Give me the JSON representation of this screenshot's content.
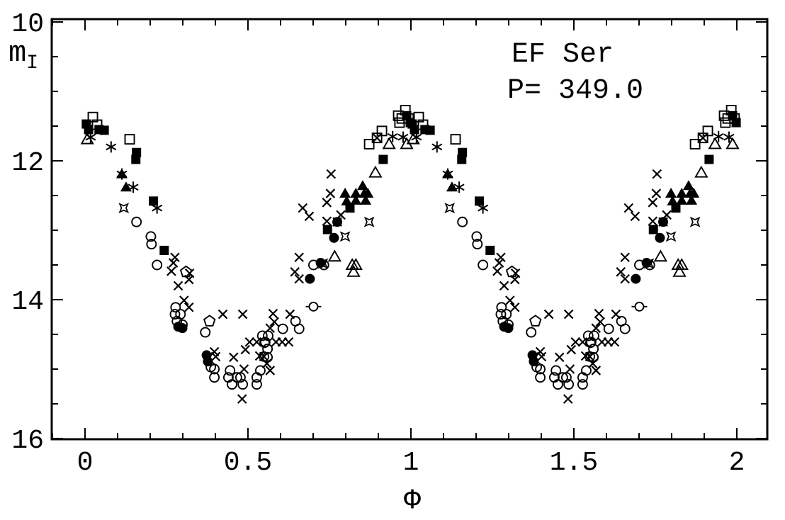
{
  "figure": {
    "background": "#ffffff",
    "ink_color": "#000000"
  },
  "chart_data": {
    "type": "scatter",
    "annotations": {
      "star_name": "EF Ser",
      "period_label": "P= 349.0"
    },
    "xlabel": "Φ",
    "ylabel": {
      "main": "m",
      "sub": "I"
    },
    "x_axis": {
      "range": [
        -0.102,
        2.093
      ],
      "major_ticks": [
        0,
        0.5,
        1,
        1.5,
        2
      ],
      "major_tick_labels": [
        "0",
        "0.5",
        "1",
        "1.5",
        "2"
      ],
      "minor_tick_step": 0.1
    },
    "y_axis": {
      "range": [
        9.96,
        16.02
      ],
      "inverted": true,
      "major_ticks": [
        10,
        12,
        14,
        16
      ],
      "major_tick_labels": [
        "10",
        "12",
        "14",
        "16"
      ],
      "minor_tick_step": 0.5
    },
    "grid": false,
    "legend": "none",
    "phase_duplication": "each observation is plotted at phase φ and φ+1",
    "series": [
      {
        "name": "open-square",
        "marker": "sq_open",
        "points": [
          [
            0.024,
            11.37
          ],
          [
            0.037,
            11.48
          ],
          [
            0.137,
            11.69
          ],
          [
            0.872,
            11.76
          ],
          [
            0.896,
            11.67
          ],
          [
            0.911,
            11.57
          ],
          [
            0.961,
            11.35
          ],
          [
            0.965,
            11.45
          ],
          [
            0.972,
            11.39
          ],
          [
            0.983,
            11.27
          ],
          [
            0.993,
            11.39
          ]
        ]
      },
      {
        "name": "filled-square",
        "marker": "sq_fill",
        "points": [
          [
            0.004,
            11.47
          ],
          [
            0.011,
            11.55
          ],
          [
            0.043,
            11.55
          ],
          [
            0.059,
            11.56
          ],
          [
            0.156,
            11.98
          ],
          [
            0.158,
            11.88
          ],
          [
            0.21,
            12.58
          ],
          [
            0.243,
            13.29
          ],
          [
            0.744,
            12.99
          ],
          [
            0.813,
            12.68
          ],
          [
            0.915,
            11.98
          ],
          [
            0.987,
            11.35
          ],
          [
            0.998,
            11.45
          ]
        ]
      },
      {
        "name": "asterisk",
        "marker": "ast",
        "points": [
          [
            0.017,
            11.66
          ],
          [
            0.08,
            11.8
          ],
          [
            0.113,
            12.19
          ],
          [
            0.148,
            12.38
          ],
          [
            0.221,
            12.68
          ],
          [
            0.944,
            11.65
          ],
          [
            0.976,
            11.66
          ]
        ]
      },
      {
        "name": "open-triangle",
        "marker": "tri_open",
        "points": [
          [
            0.007,
            11.69
          ],
          [
            0.766,
            13.38
          ],
          [
            0.82,
            13.5
          ],
          [
            0.824,
            13.6
          ],
          [
            0.831,
            13.5
          ],
          [
            0.891,
            12.17
          ],
          [
            0.933,
            11.76
          ],
          [
            0.987,
            11.76
          ]
        ]
      },
      {
        "name": "filled-triangle",
        "marker": "tri_fill",
        "points": [
          [
            0.113,
            12.19
          ],
          [
            0.126,
            12.38
          ],
          [
            0.798,
            12.47
          ],
          [
            0.803,
            12.58
          ],
          [
            0.831,
            12.47
          ],
          [
            0.831,
            12.57
          ],
          [
            0.852,
            12.36
          ],
          [
            0.857,
            12.47
          ],
          [
            0.861,
            12.57
          ],
          [
            0.868,
            12.47
          ]
        ]
      },
      {
        "name": "open-circle",
        "marker": "circ_open",
        "points": [
          [
            0.158,
            12.88
          ],
          [
            0.202,
            13.09
          ],
          [
            0.204,
            13.2
          ],
          [
            0.221,
            13.5
          ],
          [
            0.276,
            14.21
          ],
          [
            0.278,
            14.11
          ],
          [
            0.282,
            14.31
          ],
          [
            0.293,
            14.21
          ],
          [
            0.299,
            14.36
          ],
          [
            0.369,
            14.47
          ],
          [
            0.386,
            14.97
          ],
          [
            0.397,
            15.0
          ],
          [
            0.397,
            15.12
          ],
          [
            0.44,
            15.12
          ],
          [
            0.445,
            15.02
          ],
          [
            0.451,
            15.22
          ],
          [
            0.466,
            15.12
          ],
          [
            0.477,
            15.12
          ],
          [
            0.484,
            15.22
          ],
          [
            0.527,
            15.12
          ],
          [
            0.527,
            15.22
          ],
          [
            0.538,
            15.02
          ],
          [
            0.544,
            14.52
          ],
          [
            0.549,
            14.82
          ],
          [
            0.551,
            14.62
          ],
          [
            0.553,
            14.61
          ],
          [
            0.56,
            14.71
          ],
          [
            0.56,
            14.83
          ],
          [
            0.562,
            14.52
          ],
          [
            0.607,
            14.42
          ],
          [
            0.646,
            14.31
          ],
          [
            0.657,
            14.42
          ],
          [
            0.701,
            13.5
          ],
          [
            0.733,
            13.5
          ]
        ]
      },
      {
        "name": "filled-circle",
        "marker": "circ_fill",
        "points": [
          [
            0.286,
            14.39
          ],
          [
            0.299,
            14.41
          ],
          [
            0.373,
            14.8
          ],
          [
            0.377,
            14.89
          ],
          [
            0.69,
            13.7
          ],
          [
            0.723,
            13.47
          ],
          [
            0.764,
            13.11
          ],
          [
            0.774,
            12.88
          ]
        ]
      },
      {
        "name": "cross",
        "marker": "cross",
        "points": [
          [
            0.265,
            13.59
          ],
          [
            0.271,
            13.47
          ],
          [
            0.276,
            13.39
          ],
          [
            0.286,
            13.8
          ],
          [
            0.304,
            14.01
          ],
          [
            0.319,
            13.71
          ],
          [
            0.319,
            14.11
          ],
          [
            0.321,
            13.62
          ],
          [
            0.397,
            14.75
          ],
          [
            0.401,
            14.82
          ],
          [
            0.423,
            14.21
          ],
          [
            0.456,
            14.83
          ],
          [
            0.482,
            15.43
          ],
          [
            0.484,
            14.21
          ],
          [
            0.488,
            15.0
          ],
          [
            0.492,
            14.72
          ],
          [
            0.505,
            14.61
          ],
          [
            0.527,
            14.61
          ],
          [
            0.536,
            14.81
          ],
          [
            0.549,
            14.82
          ],
          [
            0.558,
            14.92
          ],
          [
            0.568,
            14.41
          ],
          [
            0.568,
            15.02
          ],
          [
            0.577,
            14.2
          ],
          [
            0.581,
            14.32
          ],
          [
            0.586,
            14.61
          ],
          [
            0.605,
            14.61
          ],
          [
            0.625,
            14.61
          ],
          [
            0.629,
            14.21
          ],
          [
            0.644,
            13.6
          ],
          [
            0.657,
            13.39
          ],
          [
            0.657,
            13.7
          ],
          [
            0.668,
            12.68
          ],
          [
            0.688,
            12.8
          ],
          [
            0.742,
            12.6
          ],
          [
            0.742,
            12.87
          ],
          [
            0.753,
            12.47
          ],
          [
            0.755,
            12.19
          ],
          [
            0.774,
            12.88
          ],
          [
            0.785,
            12.78
          ],
          [
            0.896,
            11.67
          ]
        ]
      },
      {
        "name": "open-pentagon",
        "marker": "pent",
        "points": [
          [
            0.31,
            13.6
          ],
          [
            0.382,
            14.31
          ]
        ]
      },
      {
        "name": "open-four-point-star",
        "marker": "star4",
        "points": [
          [
            0.119,
            12.68
          ],
          [
            0.73,
            13.48
          ],
          [
            0.798,
            13.09
          ],
          [
            0.872,
            12.88
          ]
        ]
      },
      {
        "name": "circle-with-error-bars",
        "marker": "circ_err",
        "points": [
          [
            0.701,
            14.1
          ]
        ]
      }
    ]
  }
}
